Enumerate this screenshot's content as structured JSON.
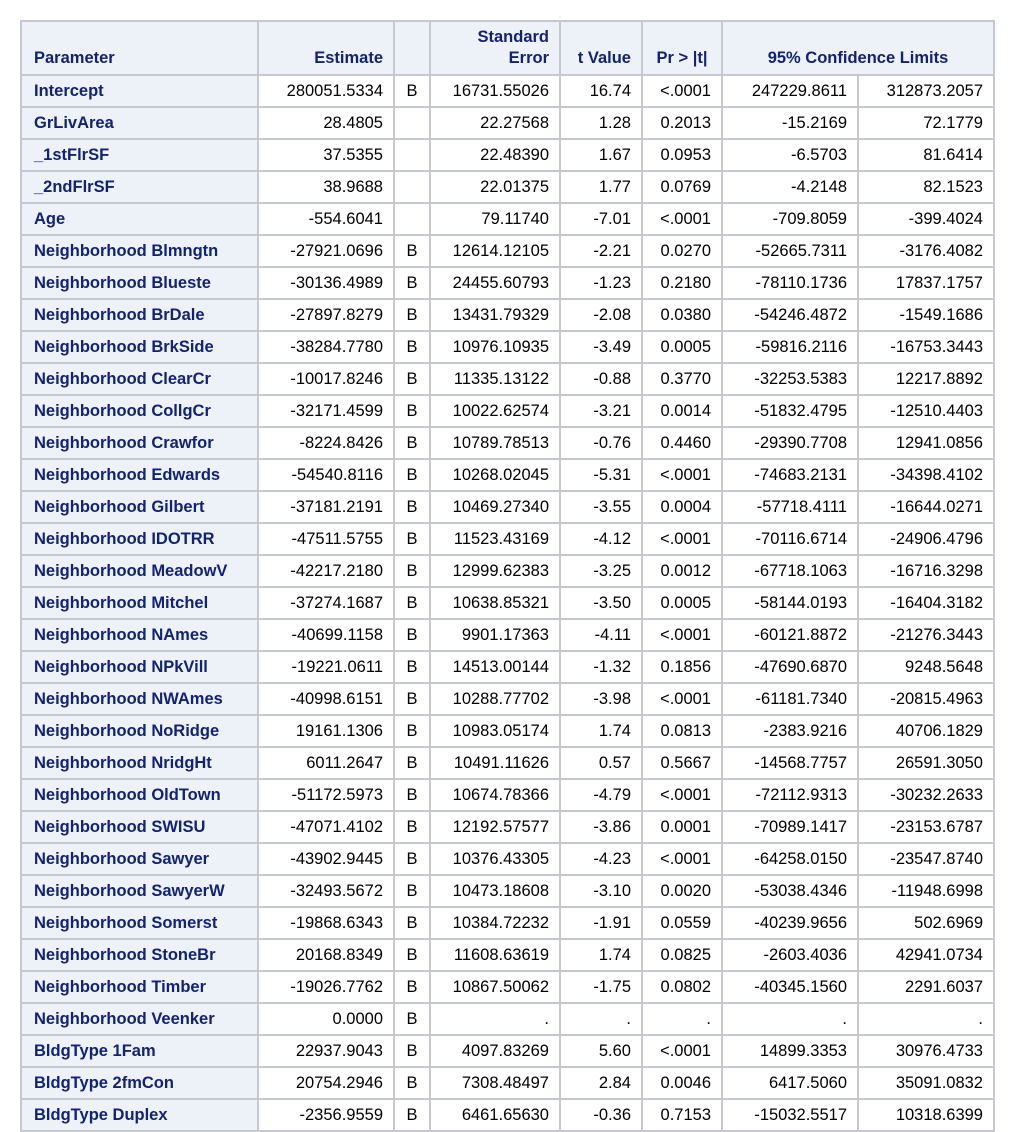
{
  "table": {
    "headers": {
      "parameter": "Parameter",
      "estimate": "Estimate",
      "flag": "",
      "std_error_line1": "Standard",
      "std_error_line2": "Error",
      "t_value": "t Value",
      "pr_t": "Pr > |t|",
      "confidence_limits": "95% Confidence Limits"
    },
    "rows": [
      {
        "parameter": "Intercept",
        "estimate": "280051.5334",
        "flag": "B",
        "std_error": "16731.55026",
        "t_value": "16.74",
        "pr_t": "<.0001",
        "lower": "247229.8611",
        "upper": "312873.2057"
      },
      {
        "parameter": "GrLivArea",
        "estimate": "28.4805",
        "flag": "",
        "std_error": "22.27568",
        "t_value": "1.28",
        "pr_t": "0.2013",
        "lower": "-15.2169",
        "upper": "72.1779"
      },
      {
        "parameter": "_1stFlrSF",
        "estimate": "37.5355",
        "flag": "",
        "std_error": "22.48390",
        "t_value": "1.67",
        "pr_t": "0.0953",
        "lower": "-6.5703",
        "upper": "81.6414"
      },
      {
        "parameter": "_2ndFlrSF",
        "estimate": "38.9688",
        "flag": "",
        "std_error": "22.01375",
        "t_value": "1.77",
        "pr_t": "0.0769",
        "lower": "-4.2148",
        "upper": "82.1523"
      },
      {
        "parameter": "Age",
        "estimate": "-554.6041",
        "flag": "",
        "std_error": "79.11740",
        "t_value": "-7.01",
        "pr_t": "<.0001",
        "lower": "-709.8059",
        "upper": "-399.4024"
      },
      {
        "parameter": "Neighborhood Blmngtn",
        "estimate": "-27921.0696",
        "flag": "B",
        "std_error": "12614.12105",
        "t_value": "-2.21",
        "pr_t": "0.0270",
        "lower": "-52665.7311",
        "upper": "-3176.4082"
      },
      {
        "parameter": "Neighborhood Blueste",
        "estimate": "-30136.4989",
        "flag": "B",
        "std_error": "24455.60793",
        "t_value": "-1.23",
        "pr_t": "0.2180",
        "lower": "-78110.1736",
        "upper": "17837.1757"
      },
      {
        "parameter": "Neighborhood BrDale",
        "estimate": "-27897.8279",
        "flag": "B",
        "std_error": "13431.79329",
        "t_value": "-2.08",
        "pr_t": "0.0380",
        "lower": "-54246.4872",
        "upper": "-1549.1686"
      },
      {
        "parameter": "Neighborhood BrkSide",
        "estimate": "-38284.7780",
        "flag": "B",
        "std_error": "10976.10935",
        "t_value": "-3.49",
        "pr_t": "0.0005",
        "lower": "-59816.2116",
        "upper": "-16753.3443"
      },
      {
        "parameter": "Neighborhood ClearCr",
        "estimate": "-10017.8246",
        "flag": "B",
        "std_error": "11335.13122",
        "t_value": "-0.88",
        "pr_t": "0.3770",
        "lower": "-32253.5383",
        "upper": "12217.8892"
      },
      {
        "parameter": "Neighborhood CollgCr",
        "estimate": "-32171.4599",
        "flag": "B",
        "std_error": "10022.62574",
        "t_value": "-3.21",
        "pr_t": "0.0014",
        "lower": "-51832.4795",
        "upper": "-12510.4403"
      },
      {
        "parameter": "Neighborhood Crawfor",
        "estimate": "-8224.8426",
        "flag": "B",
        "std_error": "10789.78513",
        "t_value": "-0.76",
        "pr_t": "0.4460",
        "lower": "-29390.7708",
        "upper": "12941.0856"
      },
      {
        "parameter": "Neighborhood Edwards",
        "estimate": "-54540.8116",
        "flag": "B",
        "std_error": "10268.02045",
        "t_value": "-5.31",
        "pr_t": "<.0001",
        "lower": "-74683.2131",
        "upper": "-34398.4102"
      },
      {
        "parameter": "Neighborhood Gilbert",
        "estimate": "-37181.2191",
        "flag": "B",
        "std_error": "10469.27340",
        "t_value": "-3.55",
        "pr_t": "0.0004",
        "lower": "-57718.4111",
        "upper": "-16644.0271"
      },
      {
        "parameter": "Neighborhood IDOTRR",
        "estimate": "-47511.5755",
        "flag": "B",
        "std_error": "11523.43169",
        "t_value": "-4.12",
        "pr_t": "<.0001",
        "lower": "-70116.6714",
        "upper": "-24906.4796"
      },
      {
        "parameter": "Neighborhood MeadowV",
        "estimate": "-42217.2180",
        "flag": "B",
        "std_error": "12999.62383",
        "t_value": "-3.25",
        "pr_t": "0.0012",
        "lower": "-67718.1063",
        "upper": "-16716.3298"
      },
      {
        "parameter": "Neighborhood Mitchel",
        "estimate": "-37274.1687",
        "flag": "B",
        "std_error": "10638.85321",
        "t_value": "-3.50",
        "pr_t": "0.0005",
        "lower": "-58144.0193",
        "upper": "-16404.3182"
      },
      {
        "parameter": "Neighborhood NAmes",
        "estimate": "-40699.1158",
        "flag": "B",
        "std_error": "9901.17363",
        "t_value": "-4.11",
        "pr_t": "<.0001",
        "lower": "-60121.8872",
        "upper": "-21276.3443"
      },
      {
        "parameter": "Neighborhood NPkVill",
        "estimate": "-19221.0611",
        "flag": "B",
        "std_error": "14513.00144",
        "t_value": "-1.32",
        "pr_t": "0.1856",
        "lower": "-47690.6870",
        "upper": "9248.5648"
      },
      {
        "parameter": "Neighborhood NWAmes",
        "estimate": "-40998.6151",
        "flag": "B",
        "std_error": "10288.77702",
        "t_value": "-3.98",
        "pr_t": "<.0001",
        "lower": "-61181.7340",
        "upper": "-20815.4963"
      },
      {
        "parameter": "Neighborhood NoRidge",
        "estimate": "19161.1306",
        "flag": "B",
        "std_error": "10983.05174",
        "t_value": "1.74",
        "pr_t": "0.0813",
        "lower": "-2383.9216",
        "upper": "40706.1829"
      },
      {
        "parameter": "Neighborhood NridgHt",
        "estimate": "6011.2647",
        "flag": "B",
        "std_error": "10491.11626",
        "t_value": "0.57",
        "pr_t": "0.5667",
        "lower": "-14568.7757",
        "upper": "26591.3050"
      },
      {
        "parameter": "Neighborhood OldTown",
        "estimate": "-51172.5973",
        "flag": "B",
        "std_error": "10674.78366",
        "t_value": "-4.79",
        "pr_t": "<.0001",
        "lower": "-72112.9313",
        "upper": "-30232.2633"
      },
      {
        "parameter": "Neighborhood SWISU",
        "estimate": "-47071.4102",
        "flag": "B",
        "std_error": "12192.57577",
        "t_value": "-3.86",
        "pr_t": "0.0001",
        "lower": "-70989.1417",
        "upper": "-23153.6787"
      },
      {
        "parameter": "Neighborhood Sawyer",
        "estimate": "-43902.9445",
        "flag": "B",
        "std_error": "10376.43305",
        "t_value": "-4.23",
        "pr_t": "<.0001",
        "lower": "-64258.0150",
        "upper": "-23547.8740"
      },
      {
        "parameter": "Neighborhood SawyerW",
        "estimate": "-32493.5672",
        "flag": "B",
        "std_error": "10473.18608",
        "t_value": "-3.10",
        "pr_t": "0.0020",
        "lower": "-53038.4346",
        "upper": "-11948.6998"
      },
      {
        "parameter": "Neighborhood Somerst",
        "estimate": "-19868.6343",
        "flag": "B",
        "std_error": "10384.72232",
        "t_value": "-1.91",
        "pr_t": "0.0559",
        "lower": "-40239.9656",
        "upper": "502.6969"
      },
      {
        "parameter": "Neighborhood StoneBr",
        "estimate": "20168.8349",
        "flag": "B",
        "std_error": "11608.63619",
        "t_value": "1.74",
        "pr_t": "0.0825",
        "lower": "-2603.4036",
        "upper": "42941.0734"
      },
      {
        "parameter": "Neighborhood Timber",
        "estimate": "-19026.7762",
        "flag": "B",
        "std_error": "10867.50062",
        "t_value": "-1.75",
        "pr_t": "0.0802",
        "lower": "-40345.1560",
        "upper": "2291.6037"
      },
      {
        "parameter": "Neighborhood Veenker",
        "estimate": "0.0000",
        "flag": "B",
        "std_error": ".",
        "t_value": ".",
        "pr_t": ".",
        "lower": ".",
        "upper": "."
      },
      {
        "parameter": "BldgType 1Fam",
        "estimate": "22937.9043",
        "flag": "B",
        "std_error": "4097.83269",
        "t_value": "5.60",
        "pr_t": "<.0001",
        "lower": "14899.3353",
        "upper": "30976.4733"
      },
      {
        "parameter": "BldgType 2fmCon",
        "estimate": "20754.2946",
        "flag": "B",
        "std_error": "7308.48497",
        "t_value": "2.84",
        "pr_t": "0.0046",
        "lower": "6417.5060",
        "upper": "35091.0832"
      },
      {
        "parameter": "BldgType Duplex",
        "estimate": "-2356.9559",
        "flag": "B",
        "std_error": "6461.65630",
        "t_value": "-0.36",
        "pr_t": "0.7153",
        "lower": "-15032.5517",
        "upper": "10318.6399"
      }
    ]
  }
}
